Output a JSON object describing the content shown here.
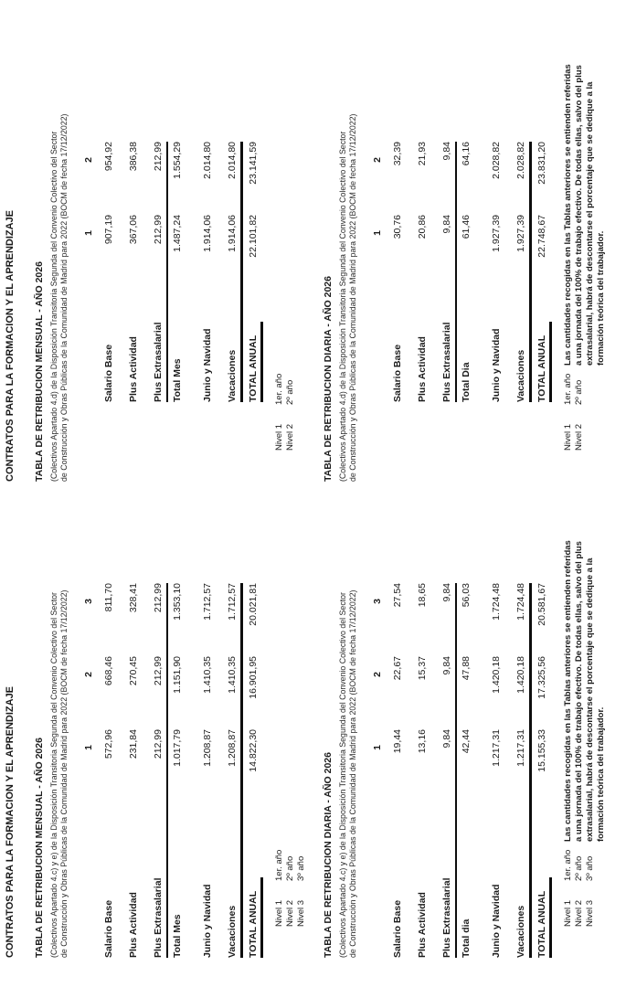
{
  "columns": [
    {
      "side": "left",
      "header": "CONTRATOS PARA LA FORMACION Y EL APRENDIZAJE",
      "tables": [
        {
          "title": "TABLA DE RETRIBUCION MENSUAL - AÑO 2026",
          "subtitle1": "(Colectivos Apartado 4.c) y e) de la Disposición Transitoria Segunda del Convenio Colectivo del Sector",
          "subtitle2": "de Construcción y Obras Públicas de la Comunidad de Madrid para 2022 (BOCM de fecha 17/12/2022)",
          "col_headers": [
            "1",
            "2",
            "3"
          ],
          "rows": [
            {
              "label": "Salario Base",
              "values": [
                "572,96",
                "668,46",
                "811,70"
              ]
            },
            {
              "label": "Plus Actividad",
              "values": [
                "231,84",
                "270,45",
                "328,41"
              ]
            },
            {
              "label": "Plus Extrasalarial",
              "values": [
                "212,99",
                "212,99",
                "212,99"
              ]
            },
            {
              "label": "Total Mes",
              "values": [
                "1.017,79",
                "1.151,90",
                "1.353,10"
              ]
            },
            {
              "label": "Junio y Navidad",
              "values": [
                "1.208,87",
                "1.410,35",
                "1.712,57"
              ]
            },
            {
              "label": "Vacaciones",
              "values": [
                "1.208,87",
                "1.410,35",
                "1.712,57"
              ]
            },
            {
              "label": "TOTAL ANUAL",
              "values": [
                "14.822,30",
                "16.901,95",
                "20.021,81"
              ]
            }
          ],
          "notes": [
            [
              "Nivel 1",
              "1er. año"
            ],
            [
              "Nivel 2",
              "2º año"
            ],
            [
              "Nivel 3",
              "3º año"
            ]
          ]
        },
        {
          "title": "TABLA DE RETRIBUCION DIARIA - AÑO 2026",
          "subtitle1": "(Colectivos Apartado 4.c) y e) de la Disposición Transitoria Segunda del Convenio Colectivo del Sector",
          "subtitle2": "de Construcción y Obras Públicas de la Comunidad de Madrid para 2022 (BOCM de fecha 17/12/2022)",
          "col_headers": [
            "1",
            "2",
            "3"
          ],
          "rows": [
            {
              "label": "Salario Base",
              "values": [
                "19,44",
                "22,67",
                "27,54"
              ]
            },
            {
              "label": "Plus Actividad",
              "values": [
                "13,16",
                "15,37",
                "18,65"
              ]
            },
            {
              "label": "Plus Extrasalarial",
              "values": [
                "9,84",
                "9,84",
                "9,84"
              ]
            },
            {
              "label": "Total dia",
              "values": [
                "42,44",
                "47,88",
                "56,03"
              ]
            },
            {
              "label": "Junio y Navidad",
              "values": [
                "1.217,31",
                "1.420,18",
                "1.724,48"
              ]
            },
            {
              "label": "Vacaciones",
              "values": [
                "1.217,31",
                "1.420,18",
                "1.724,48"
              ]
            },
            {
              "label": "TOTAL ANUAL",
              "values": [
                "15.155,33",
                "17.325,56",
                "20.581,67"
              ]
            }
          ],
          "notes": []
        }
      ],
      "footnote": {
        "levels": [
          [
            "Nivel 1",
            "1er. año"
          ],
          [
            "Nivel 2",
            "2º año"
          ],
          [
            "Nivel 3",
            "3º año"
          ]
        ],
        "lines": [
          "Las cantidades recogidas en las Tablas anteriores se entienden referidas",
          "a una jornada del 100% de trabajo efectivo. De todas ellas, salvo del plus",
          "extrasalarial, habrá de descontarse el porcentaje que se dedique a la",
          "formación teórica del trabajador."
        ]
      }
    },
    {
      "side": "right",
      "header": "CONTRATOS PARA LA FORMACION Y EL APRENDIZAJE",
      "tables": [
        {
          "title": "TABLA DE RETRIBUCION MENSUAL - AÑO 2026",
          "subtitle1": "(Colectivos Apartado 4.d) de la Disposición Transitoria Segunda del Convenio Colectivo del Sector",
          "subtitle2": "de Construcción y Obras Públicas de la Comunidad de Madrid para 2022 (BOCM de fecha 17/12/2022)",
          "col_headers": [
            "1",
            "2"
          ],
          "rows": [
            {
              "label": "Salario Base",
              "values": [
                "907,19",
                "954,92"
              ]
            },
            {
              "label": "Plus Actividad",
              "values": [
                "367,06",
                "386,38"
              ]
            },
            {
              "label": "Plus Extrasalarial",
              "values": [
                "212,99",
                "212,99"
              ]
            },
            {
              "label": "Total Mes",
              "values": [
                "1.487,24",
                "1.554,29"
              ]
            },
            {
              "label": "Junio y Navidad",
              "values": [
                "1.914,06",
                "2.014,80"
              ]
            },
            {
              "label": "Vacaciones",
              "values": [
                "1.914,06",
                "2.014,80"
              ]
            },
            {
              "label": "TOTAL ANUAL",
              "values": [
                "22.101,82",
                "23.141,59"
              ]
            }
          ],
          "notes": [
            [
              "Nivel 1",
              "1er. año"
            ],
            [
              "Nivel 2",
              "2º año"
            ]
          ]
        },
        {
          "title": "TABLA DE RETRIBUCION DIARIA - AÑO 2026",
          "subtitle1": "(Colectivos Apartado 4.d) de la Disposición Transitoria Segunda del Convenio Colectivo del Sector",
          "subtitle2": "de Construcción y Obras Públicas de la Comunidad de Madrid para 2022 (BOCM de fecha 17/12/2022)",
          "col_headers": [
            "1",
            "2"
          ],
          "rows": [
            {
              "label": "Salario Base",
              "values": [
                "30,76",
                "32,39"
              ]
            },
            {
              "label": "Plus Actividad",
              "values": [
                "20,86",
                "21,93"
              ]
            },
            {
              "label": "Plus Extrasalarial",
              "values": [
                "9,84",
                "9,84"
              ]
            },
            {
              "label": "Total Dia",
              "values": [
                "61,46",
                "64,16"
              ]
            },
            {
              "label": "Junio y Navidad",
              "values": [
                "1.927,39",
                "2.028,82"
              ]
            },
            {
              "label": "Vacaciones",
              "values": [
                "1.927,39",
                "2.028,82"
              ]
            },
            {
              "label": "TOTAL ANUAL",
              "values": [
                "22.748,67",
                "23.831,20"
              ]
            }
          ],
          "notes": []
        }
      ],
      "footnote": {
        "levels": [
          [
            "Nivel 1",
            "1er. año"
          ],
          [
            "Nivel 2",
            "2º año"
          ]
        ],
        "lines": [
          "Las cantidades recogidas en las Tablas anteriores se entienden referidas",
          "a una jornada del 100% de trabajo efectivo. De todas ellas, salvo del plus",
          "extrasalarial, habrá de descontarse el porcentaje que se dedique a la",
          "formación teórica del trabajador."
        ]
      }
    }
  ],
  "text_color": "#1b1b1b",
  "rule_color": "#0d0d0d"
}
